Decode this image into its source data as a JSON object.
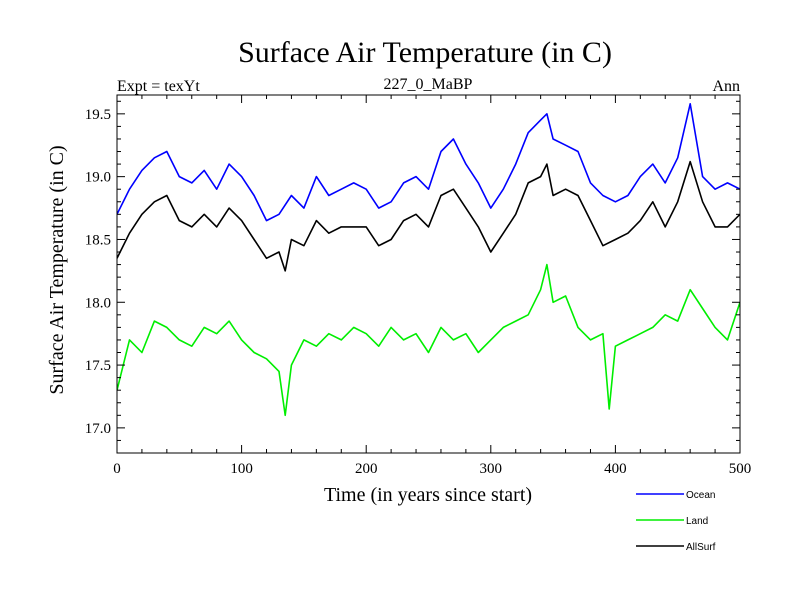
{
  "chart_data": {
    "type": "line",
    "title": "Surface Air Temperature (in C)",
    "subtitle_left": "Expt = texYt",
    "subtitle_center": "227_0_MaBP",
    "subtitle_right": "Ann",
    "xlabel": "Time (in years since start)",
    "ylabel": "Surface Air Temperature (in C)",
    "xlim": [
      0,
      500
    ],
    "ylim": [
      16.8,
      19.65
    ],
    "xticks": [
      0,
      100,
      200,
      300,
      400,
      500
    ],
    "xtick_labels": [
      "0",
      "100",
      "200",
      "300",
      "400",
      "500"
    ],
    "yticks": [
      17.0,
      17.5,
      18.0,
      18.5,
      19.0,
      19.5
    ],
    "ytick_labels": [
      "17.0",
      "17.5",
      "18.0",
      "18.5",
      "19.0",
      "19.5"
    ],
    "grid": false,
    "legend_position": "bottom-right",
    "series": [
      {
        "name": "Ocean",
        "color": "#0000ff",
        "x": [
          0,
          10,
          20,
          30,
          40,
          50,
          60,
          70,
          80,
          90,
          100,
          110,
          120,
          130,
          140,
          150,
          160,
          170,
          180,
          190,
          200,
          210,
          220,
          230,
          240,
          250,
          260,
          270,
          280,
          290,
          300,
          310,
          320,
          330,
          340,
          345,
          350,
          360,
          370,
          380,
          390,
          400,
          410,
          420,
          430,
          440,
          450,
          460,
          470,
          480,
          490,
          500
        ],
        "values": [
          18.7,
          18.9,
          19.05,
          19.15,
          19.2,
          19.0,
          18.95,
          19.05,
          18.9,
          19.1,
          19.0,
          18.85,
          18.65,
          18.7,
          18.85,
          18.75,
          19.0,
          18.85,
          18.9,
          18.95,
          18.9,
          18.75,
          18.8,
          18.95,
          19.0,
          18.9,
          19.2,
          19.3,
          19.1,
          18.95,
          18.75,
          18.9,
          19.1,
          19.35,
          19.45,
          19.5,
          19.3,
          19.25,
          19.2,
          18.95,
          18.85,
          18.8,
          18.85,
          19.0,
          19.1,
          18.95,
          19.15,
          19.58,
          19.0,
          18.9,
          18.95,
          18.9
        ]
      },
      {
        "name": "Land",
        "color": "#00ee00",
        "x": [
          0,
          10,
          20,
          30,
          40,
          50,
          60,
          70,
          80,
          90,
          100,
          110,
          120,
          130,
          135,
          140,
          150,
          160,
          170,
          180,
          190,
          200,
          210,
          220,
          230,
          240,
          250,
          260,
          270,
          280,
          290,
          300,
          310,
          320,
          330,
          340,
          345,
          350,
          360,
          370,
          380,
          390,
          395,
          400,
          410,
          420,
          430,
          440,
          450,
          460,
          470,
          480,
          490,
          500
        ],
        "values": [
          17.3,
          17.7,
          17.6,
          17.85,
          17.8,
          17.7,
          17.65,
          17.8,
          17.75,
          17.85,
          17.7,
          17.6,
          17.55,
          17.45,
          17.1,
          17.5,
          17.7,
          17.65,
          17.75,
          17.7,
          17.8,
          17.75,
          17.65,
          17.8,
          17.7,
          17.75,
          17.6,
          17.8,
          17.7,
          17.75,
          17.6,
          17.7,
          17.8,
          17.85,
          17.9,
          18.1,
          18.3,
          18.0,
          18.05,
          17.8,
          17.7,
          17.75,
          17.15,
          17.65,
          17.7,
          17.75,
          17.8,
          17.9,
          17.85,
          18.1,
          17.95,
          17.8,
          17.7,
          18.0
        ]
      },
      {
        "name": "AllSurf",
        "color": "#000000",
        "x": [
          0,
          10,
          20,
          30,
          40,
          50,
          60,
          70,
          80,
          90,
          100,
          110,
          120,
          130,
          135,
          140,
          150,
          160,
          170,
          180,
          190,
          200,
          210,
          220,
          230,
          240,
          250,
          260,
          270,
          280,
          290,
          300,
          310,
          320,
          330,
          340,
          345,
          350,
          360,
          370,
          380,
          390,
          400,
          410,
          420,
          430,
          440,
          450,
          460,
          470,
          480,
          490,
          500
        ],
        "values": [
          18.35,
          18.55,
          18.7,
          18.8,
          18.85,
          18.65,
          18.6,
          18.7,
          18.6,
          18.75,
          18.65,
          18.5,
          18.35,
          18.4,
          18.25,
          18.5,
          18.45,
          18.65,
          18.55,
          18.6,
          18.6,
          18.6,
          18.45,
          18.5,
          18.65,
          18.7,
          18.6,
          18.85,
          18.9,
          18.75,
          18.6,
          18.4,
          18.55,
          18.7,
          18.95,
          19.0,
          19.1,
          18.85,
          18.9,
          18.85,
          18.65,
          18.45,
          18.5,
          18.55,
          18.65,
          18.8,
          18.6,
          18.8,
          19.12,
          18.8,
          18.6,
          18.6,
          18.7
        ]
      }
    ]
  }
}
